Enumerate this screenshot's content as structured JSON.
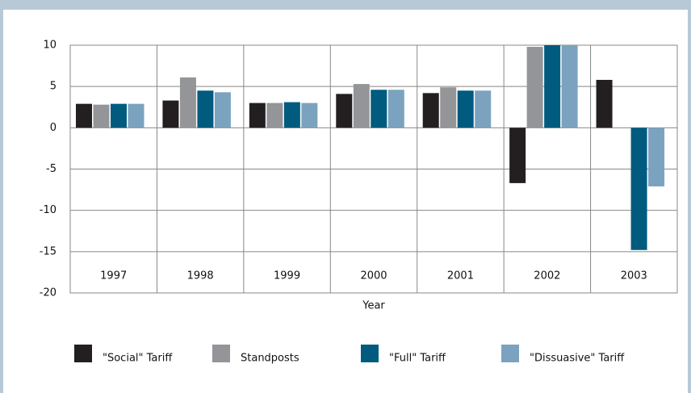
{
  "chart_data": {
    "type": "bar",
    "x_label": "Year",
    "categories": [
      "1997",
      "1998",
      "1999",
      "2000",
      "2001",
      "2002",
      "2003"
    ],
    "series": [
      {
        "name": "\"Social\" Tariff",
        "color": "#231f20",
        "values": [
          2.9,
          3.3,
          3.0,
          4.1,
          4.2,
          -6.7,
          5.8
        ]
      },
      {
        "name": "Standposts",
        "color": "#939598",
        "values": [
          2.8,
          6.1,
          3.0,
          5.3,
          4.9,
          9.8,
          null
        ]
      },
      {
        "name": "\"Full\" Tariff",
        "color": "#005b7f",
        "values": [
          2.9,
          4.5,
          3.1,
          4.6,
          4.5,
          10,
          -14.8
        ]
      },
      {
        "name": "\"Dissuasive\" Tariff",
        "color": "#7ba3bf",
        "values": [
          2.9,
          4.3,
          3.0,
          4.6,
          4.5,
          10,
          -7.1
        ]
      }
    ],
    "ylim": [
      -20,
      10
    ],
    "yticks": [
      10,
      5,
      0,
      -5,
      -10,
      -15,
      -20
    ],
    "grid": true
  }
}
